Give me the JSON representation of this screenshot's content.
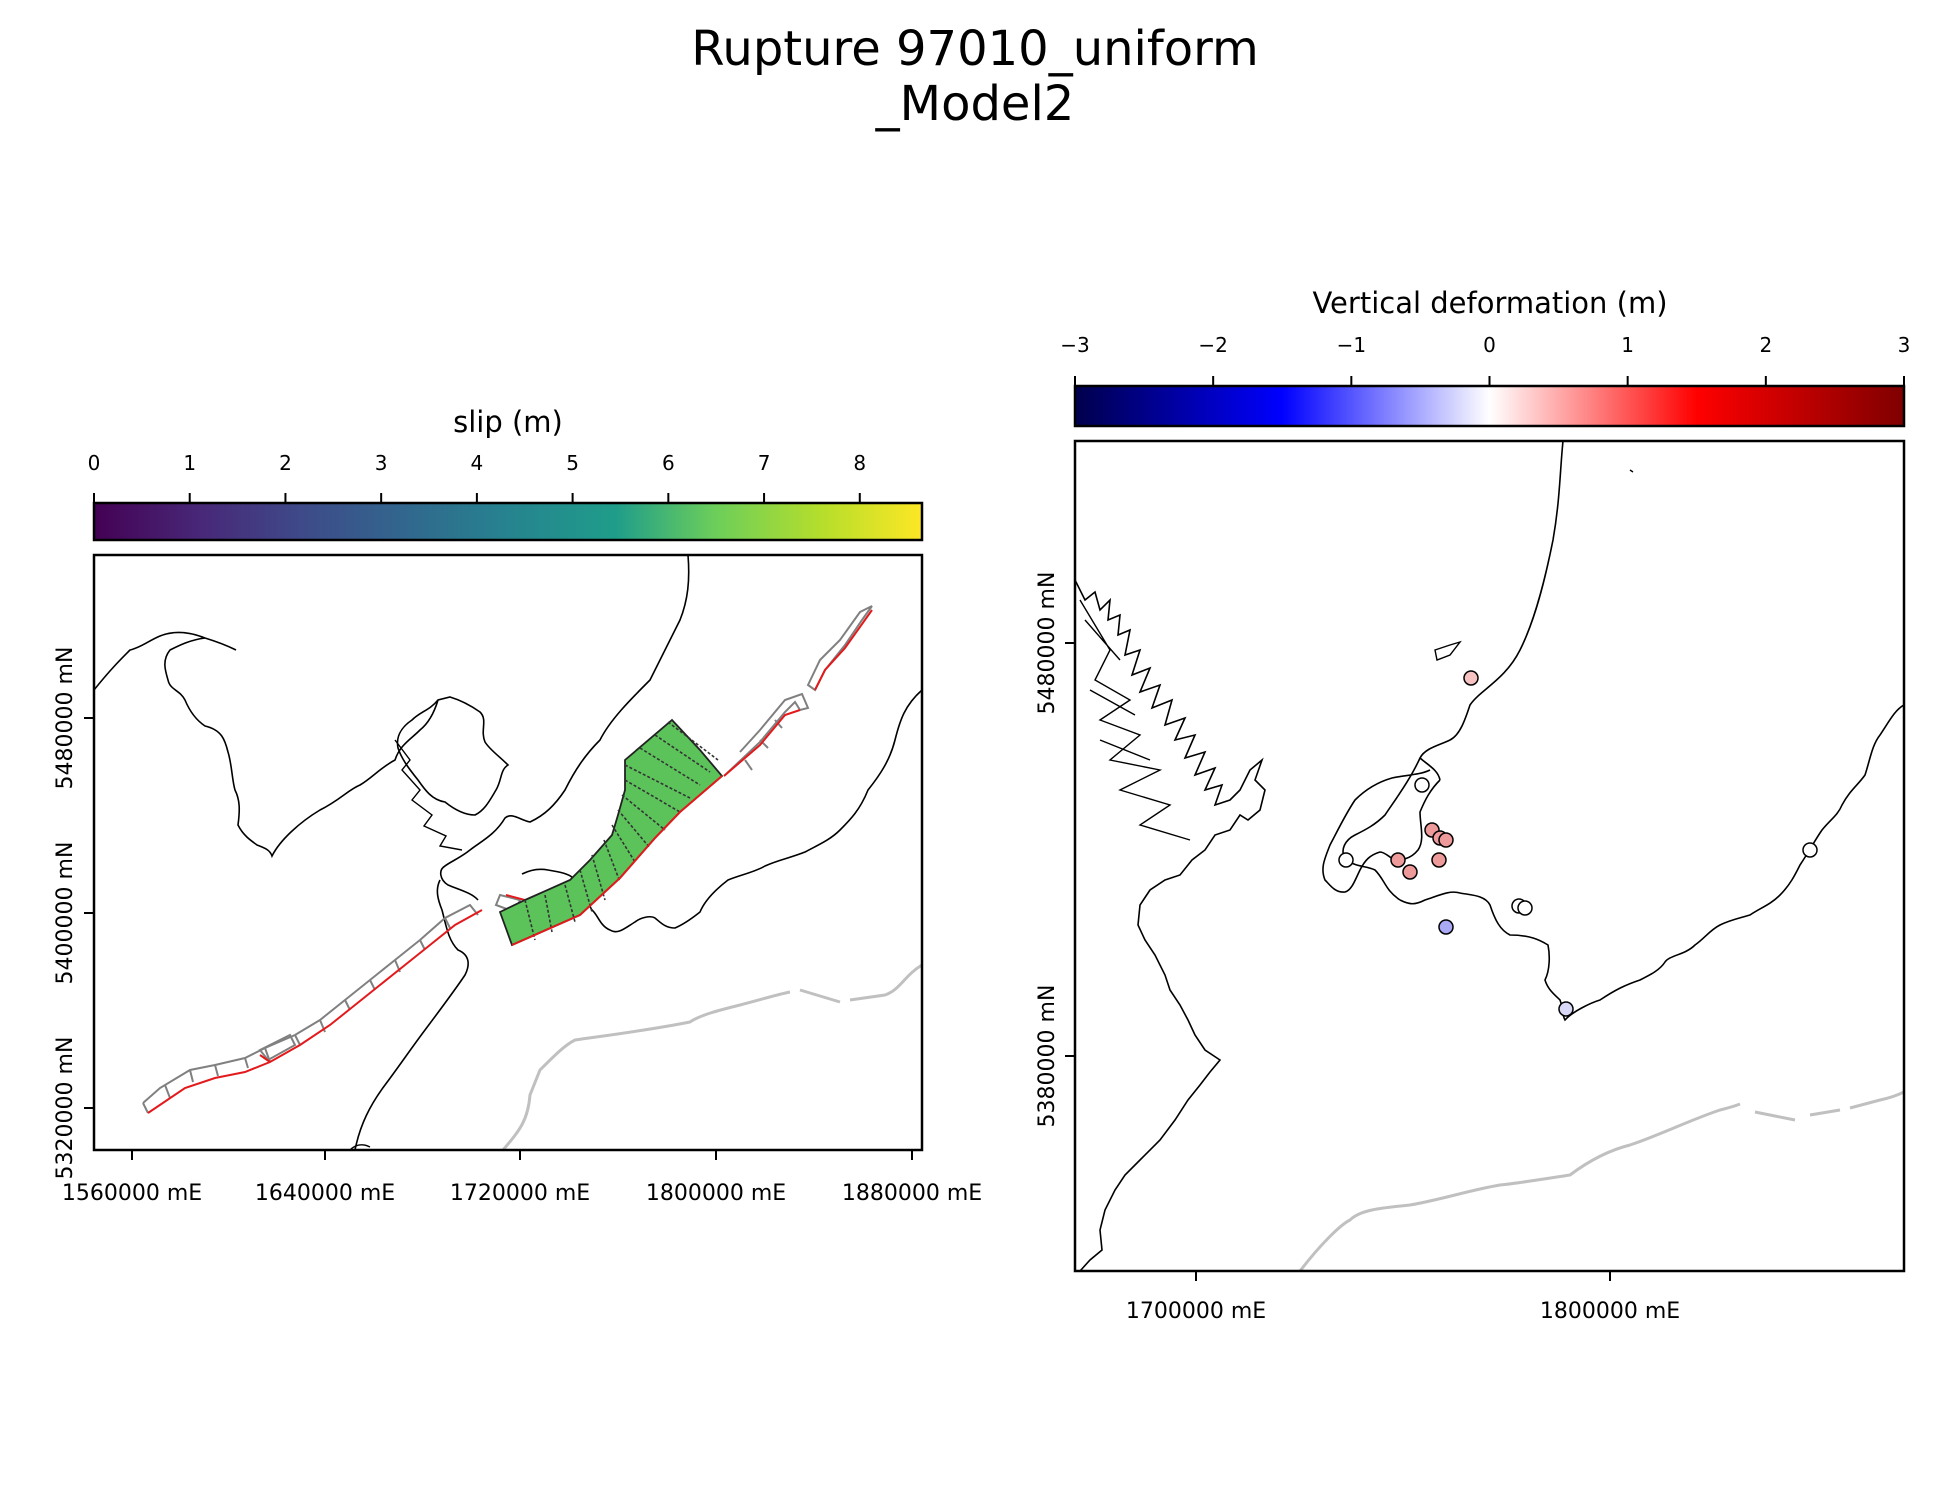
{
  "title": {
    "line1": "Rupture 97010_uniform",
    "line2": "_Model2"
  },
  "left_panel": {
    "colorbar": {
      "label": "slip (m)",
      "colormap": "viridis",
      "ticks": [
        "0",
        "1",
        "2",
        "3",
        "4",
        "5",
        "6",
        "7",
        "8"
      ],
      "range": [
        0,
        8.65
      ]
    },
    "x_ticks": [
      "1560000 mE",
      "1640000 mE",
      "1720000 mE",
      "1800000 mE",
      "1880000 mE"
    ],
    "y_ticks": [
      "5320000 mN",
      "5400000 mN",
      "5480000 mN"
    ],
    "rupture": {
      "slip_m": 6.3,
      "fill_color": "#5cc35a"
    },
    "colors": {
      "fault_trace": "#e31a1c",
      "inactive_patch": "#808080",
      "subduction_margin": "#c0c0c0",
      "coastline": "#000000"
    }
  },
  "right_panel": {
    "colorbar": {
      "label": "Vertical deformation (m)",
      "colormap": "seismic",
      "ticks": [
        "−3",
        "−2",
        "−1",
        "0",
        "1",
        "2",
        "3"
      ],
      "range": [
        -3,
        3
      ]
    },
    "x_ticks": [
      "1700000 mE",
      "1800000 mE"
    ],
    "y_ticks": [
      "5380000 mN",
      "5480000 mN"
    ],
    "sites": [
      {
        "color": "#f6c2c2"
      },
      {
        "color": "#ffffff"
      },
      {
        "color": "#ffffff"
      },
      {
        "color": "#ef9a9a"
      },
      {
        "color": "#ef9a9a"
      },
      {
        "color": "#ef9a9a"
      },
      {
        "color": "#ef9a9a"
      },
      {
        "color": "#ef9a9a"
      },
      {
        "color": "#ef9a9a"
      },
      {
        "color": "#a9a9f5"
      },
      {
        "color": "#ffffff"
      },
      {
        "color": "#ffffff"
      },
      {
        "color": "#d9d9f7"
      },
      {
        "color": "#ffffff"
      }
    ]
  }
}
